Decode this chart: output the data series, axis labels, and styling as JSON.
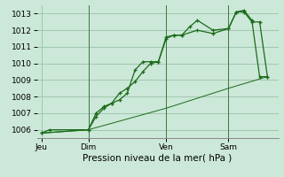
{
  "background_color": "#cce8d8",
  "grid_color": "#a0c8b0",
  "line_color": "#1a6b1a",
  "title": "Pression niveau de la mer( hPa )",
  "x_tick_labels": [
    "Jeu",
    "Dim",
    "Ven",
    "Sam"
  ],
  "x_tick_positions": [
    0,
    3,
    8,
    12
  ],
  "ylim": [
    1005.5,
    1013.5
  ],
  "yticks": [
    1006,
    1007,
    1008,
    1009,
    1010,
    1011,
    1012,
    1013
  ],
  "series1": {
    "x": [
      0,
      0.5,
      3.0,
      3.5,
      4.0,
      4.5,
      5.0,
      5.5,
      6.0,
      6.5,
      7.0,
      7.5,
      8.0,
      8.5,
      9.0,
      9.5,
      10.0,
      11.0,
      12.0,
      12.5,
      13.0,
      13.5,
      14.0,
      14.5
    ],
    "y": [
      1005.8,
      1006.0,
      1006.0,
      1006.8,
      1007.3,
      1007.6,
      1007.8,
      1008.2,
      1009.6,
      1010.1,
      1010.1,
      1010.1,
      1011.6,
      1011.7,
      1011.7,
      1012.2,
      1012.6,
      1012.0,
      1012.1,
      1013.1,
      1013.1,
      1012.5,
      1012.5,
      1009.2
    ]
  },
  "series2": {
    "x": [
      0,
      3.0,
      3.5,
      4.0,
      4.5,
      5.0,
      5.5,
      6.0,
      6.5,
      7.0,
      7.5,
      8.0,
      8.5,
      9.0,
      10.0,
      11.0,
      12.0,
      12.5,
      13.0,
      13.5,
      14.0,
      14.5
    ],
    "y": [
      1005.8,
      1006.0,
      1007.0,
      1007.4,
      1007.6,
      1008.2,
      1008.5,
      1008.9,
      1009.5,
      1010.0,
      1010.1,
      1011.5,
      1011.7,
      1011.7,
      1012.0,
      1011.8,
      1012.1,
      1013.1,
      1013.2,
      1012.6,
      1009.2,
      1009.2
    ]
  },
  "series3": {
    "x": [
      0,
      3.0,
      8.0,
      12.0,
      14.5
    ],
    "y": [
      1005.8,
      1006.0,
      1007.3,
      1008.5,
      1009.2
    ]
  },
  "xlim": [
    -0.3,
    15.2
  ],
  "vline_positions": [
    3,
    8,
    12
  ],
  "title_fontsize": 7.5,
  "tick_fontsize": 6.5,
  "marker_size": 3.5,
  "line_width": 0.9
}
